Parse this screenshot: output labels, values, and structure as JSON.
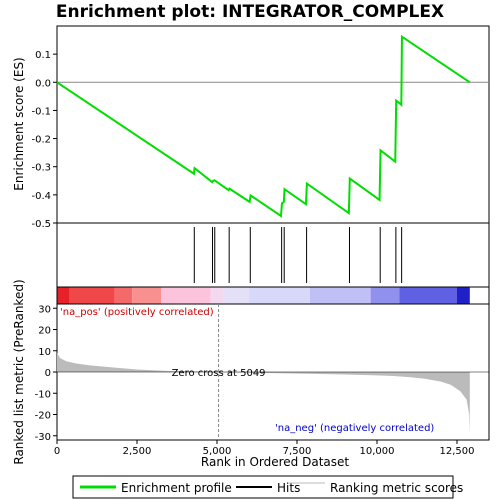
{
  "chart_data": {
    "type": "line",
    "title": "Enrichment plot: INTEGRATOR_COMPLEX",
    "xlabel": "Rank in Ordered Dataset",
    "ylabel_top": "Enrichment score (ES)",
    "ylabel_bottom": "Ranked list metric (PreRanked)",
    "xlim": [
      0,
      13500
    ],
    "x_ticks": [
      0,
      2500,
      5000,
      7500,
      10000,
      12500
    ],
    "x_tick_labels": [
      "0",
      "2,500",
      "5,000",
      "7,500",
      "10,000",
      "12,500"
    ],
    "es_ylim": [
      -0.5,
      0.2
    ],
    "es_ticks": [
      0.1,
      0.0,
      -0.1,
      -0.2,
      -0.3,
      -0.4,
      -0.5
    ],
    "es_tick_labels": [
      "0.1",
      "0.0",
      "-0.1",
      "-0.2",
      "-0.3",
      "-0.4",
      "-0.5"
    ],
    "metric_ylim": [
      -32,
      32
    ],
    "metric_ticks": [
      30,
      20,
      10,
      0,
      -10,
      -20,
      -30
    ],
    "metric_tick_labels": [
      "30",
      "20",
      "10",
      "0",
      "-10",
      "-20",
      "-30"
    ],
    "enrichment_profile": {
      "x": [
        0,
        4280,
        4300,
        4850,
        4880,
        4920,
        5360,
        5390,
        6020,
        6050,
        7000,
        7030,
        7090,
        7110,
        7780,
        7810,
        9120,
        9150,
        10080,
        10110,
        10570,
        10600,
        10760,
        10780,
        12900
      ],
      "y": [
        0.0,
        -0.325,
        -0.305,
        -0.355,
        -0.35,
        -0.348,
        -0.383,
        -0.378,
        -0.425,
        -0.402,
        -0.475,
        -0.43,
        -0.425,
        -0.38,
        -0.433,
        -0.36,
        -0.465,
        -0.342,
        -0.418,
        -0.242,
        -0.282,
        -0.065,
        -0.08,
        0.162,
        0.0
      ]
    },
    "hits": [
      4290,
      4860,
      4930,
      5380,
      6040,
      7020,
      7100,
      7800,
      9140,
      10100,
      10590,
      10770
    ],
    "ranked_metric": {
      "x": [
        0,
        100,
        300,
        600,
        1000,
        1500,
        2000,
        2500,
        3000,
        3500,
        4000,
        4500,
        5049,
        6000,
        7000,
        8000,
        9000,
        10000,
        10500,
        11000,
        11500,
        12000,
        12300,
        12600,
        12800,
        12880,
        12900
      ],
      "y": [
        9,
        6.5,
        5,
        4,
        3.2,
        2.5,
        1.8,
        1.2,
        0.8,
        0.5,
        0.3,
        0.15,
        0,
        -0.3,
        -0.6,
        -0.9,
        -1.2,
        -1.6,
        -1.9,
        -2.4,
        -3.2,
        -4.5,
        -6,
        -9,
        -13,
        -20,
        -29
      ]
    },
    "zero_cross_label": "Zero cross at 5049",
    "zero_cross": 5049,
    "pos_label": "'na_pos' (positively correlated)",
    "neg_label": "'na_neg' (negatively correlated)",
    "colors": {
      "profile": "#00dd00",
      "hits": "#000000",
      "metric_fill": "#bbbbbb",
      "pos_label": "#cc0000",
      "neg_label": "#0000cc",
      "zero_line": "#888888"
    },
    "heatmap_bands": [
      {
        "x0": 0,
        "x1": 400,
        "color": "#e8202a"
      },
      {
        "x0": 400,
        "x1": 1800,
        "color": "#f04848"
      },
      {
        "x0": 1800,
        "x1": 2350,
        "color": "#f46a6a"
      },
      {
        "x0": 2350,
        "x1": 3250,
        "color": "#f89090"
      },
      {
        "x0": 3250,
        "x1": 4800,
        "color": "#fcc4dc"
      },
      {
        "x0": 4800,
        "x1": 5200,
        "color": "#f4d8f0"
      },
      {
        "x0": 5200,
        "x1": 6000,
        "color": "#e4e0f8"
      },
      {
        "x0": 6000,
        "x1": 7900,
        "color": "#d8d8fa"
      },
      {
        "x0": 7900,
        "x1": 9800,
        "color": "#c0c0f6"
      },
      {
        "x0": 9800,
        "x1": 10700,
        "color": "#9090ee"
      },
      {
        "x0": 10700,
        "x1": 12500,
        "color": "#6060e4"
      },
      {
        "x0": 12500,
        "x1": 12900,
        "color": "#2020c8"
      }
    ],
    "legend": {
      "placement": "bottom",
      "items": [
        {
          "label": "Enrichment profile",
          "color": "#00dd00"
        },
        {
          "label": "Hits",
          "color": "#000000"
        },
        {
          "label": "Ranking metric scores",
          "color": "#bbbbbb"
        }
      ]
    }
  }
}
